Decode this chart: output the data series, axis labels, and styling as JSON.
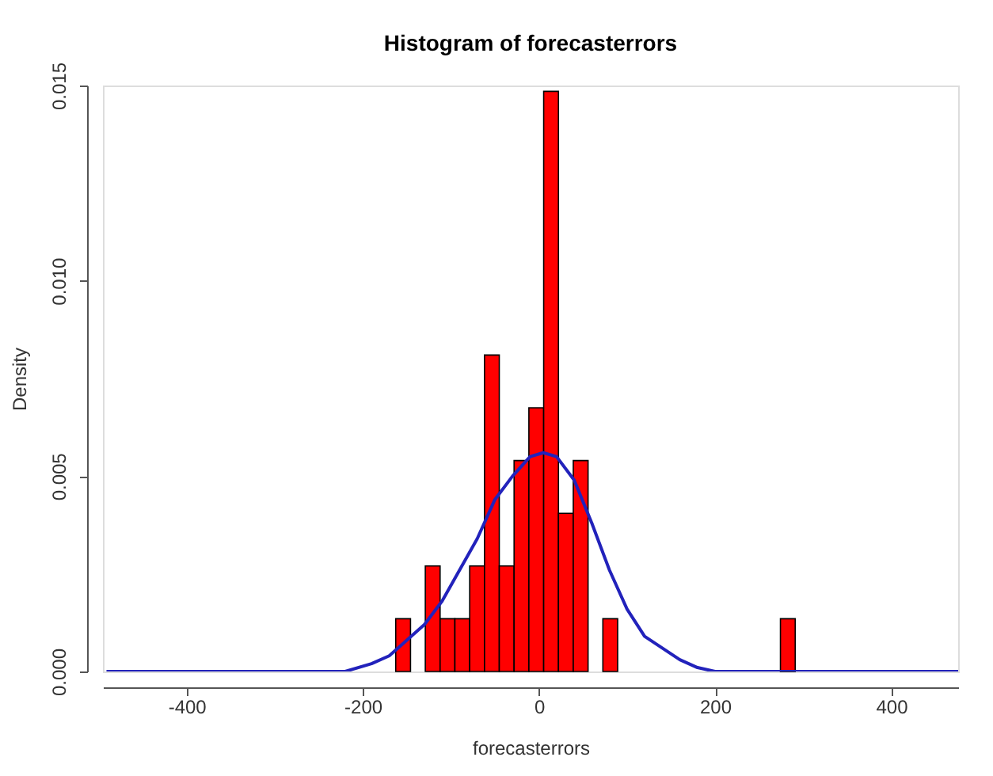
{
  "chart_data": {
    "type": "histogram",
    "title": "Histogram of forecasterrors",
    "xlabel": "forecasterrors",
    "ylabel": "Density",
    "bins": [
      -162.6,
      -145.8,
      -129,
      -112.2,
      -95.4,
      -78.6,
      -61.8,
      -45,
      -28.2,
      -11.4,
      5.4,
      22.2,
      39,
      55.8,
      72.6,
      89.4,
      106.2,
      123,
      139.8,
      156.6,
      173.4,
      190.2,
      207,
      223.8,
      240.6,
      257.4,
      274.2,
      291
    ],
    "values": [
      0.00135,
      0,
      0.0027,
      0.00135,
      0.00135,
      0.0027,
      0.0081,
      0.0027,
      0.0054,
      0.00675,
      0.01485,
      0.00405,
      0.0054,
      0,
      0.00135,
      0,
      0,
      0,
      0,
      0,
      0,
      0,
      0,
      0,
      0,
      0,
      0.00135
    ],
    "color": "#ff0000",
    "series": [
      {
        "type": "line",
        "color": "#2222bb",
        "x": [
          -491,
          -220,
          -190,
          -170,
          -150,
          -130,
          -110,
          -90,
          -70,
          -50,
          -30,
          -10,
          5,
          20,
          40,
          60,
          80,
          100,
          120,
          140,
          160,
          180,
          200,
          230,
          476
        ],
        "values": [
          0,
          0,
          0.0002,
          0.0004,
          0.0008,
          0.0012,
          0.0018,
          0.0026,
          0.0034,
          0.0044,
          0.005,
          0.0055,
          0.0056,
          0.0055,
          0.0049,
          0.0038,
          0.0026,
          0.0016,
          0.0009,
          0.0006,
          0.0003,
          0.0001,
          0,
          0,
          0
        ]
      }
    ],
    "xlim": [
      -495,
      476
    ],
    "xticks": [
      -400,
      -200,
      0,
      200,
      400
    ],
    "ylim": [
      0,
      0.015
    ],
    "yticks": [
      {
        "value": 0,
        "label": "0.000"
      },
      {
        "value": 0.005,
        "label": "0.005"
      },
      {
        "value": 0.01,
        "label": "0.010"
      },
      {
        "value": 0.015,
        "label": "0.015"
      }
    ],
    "grid": false
  }
}
